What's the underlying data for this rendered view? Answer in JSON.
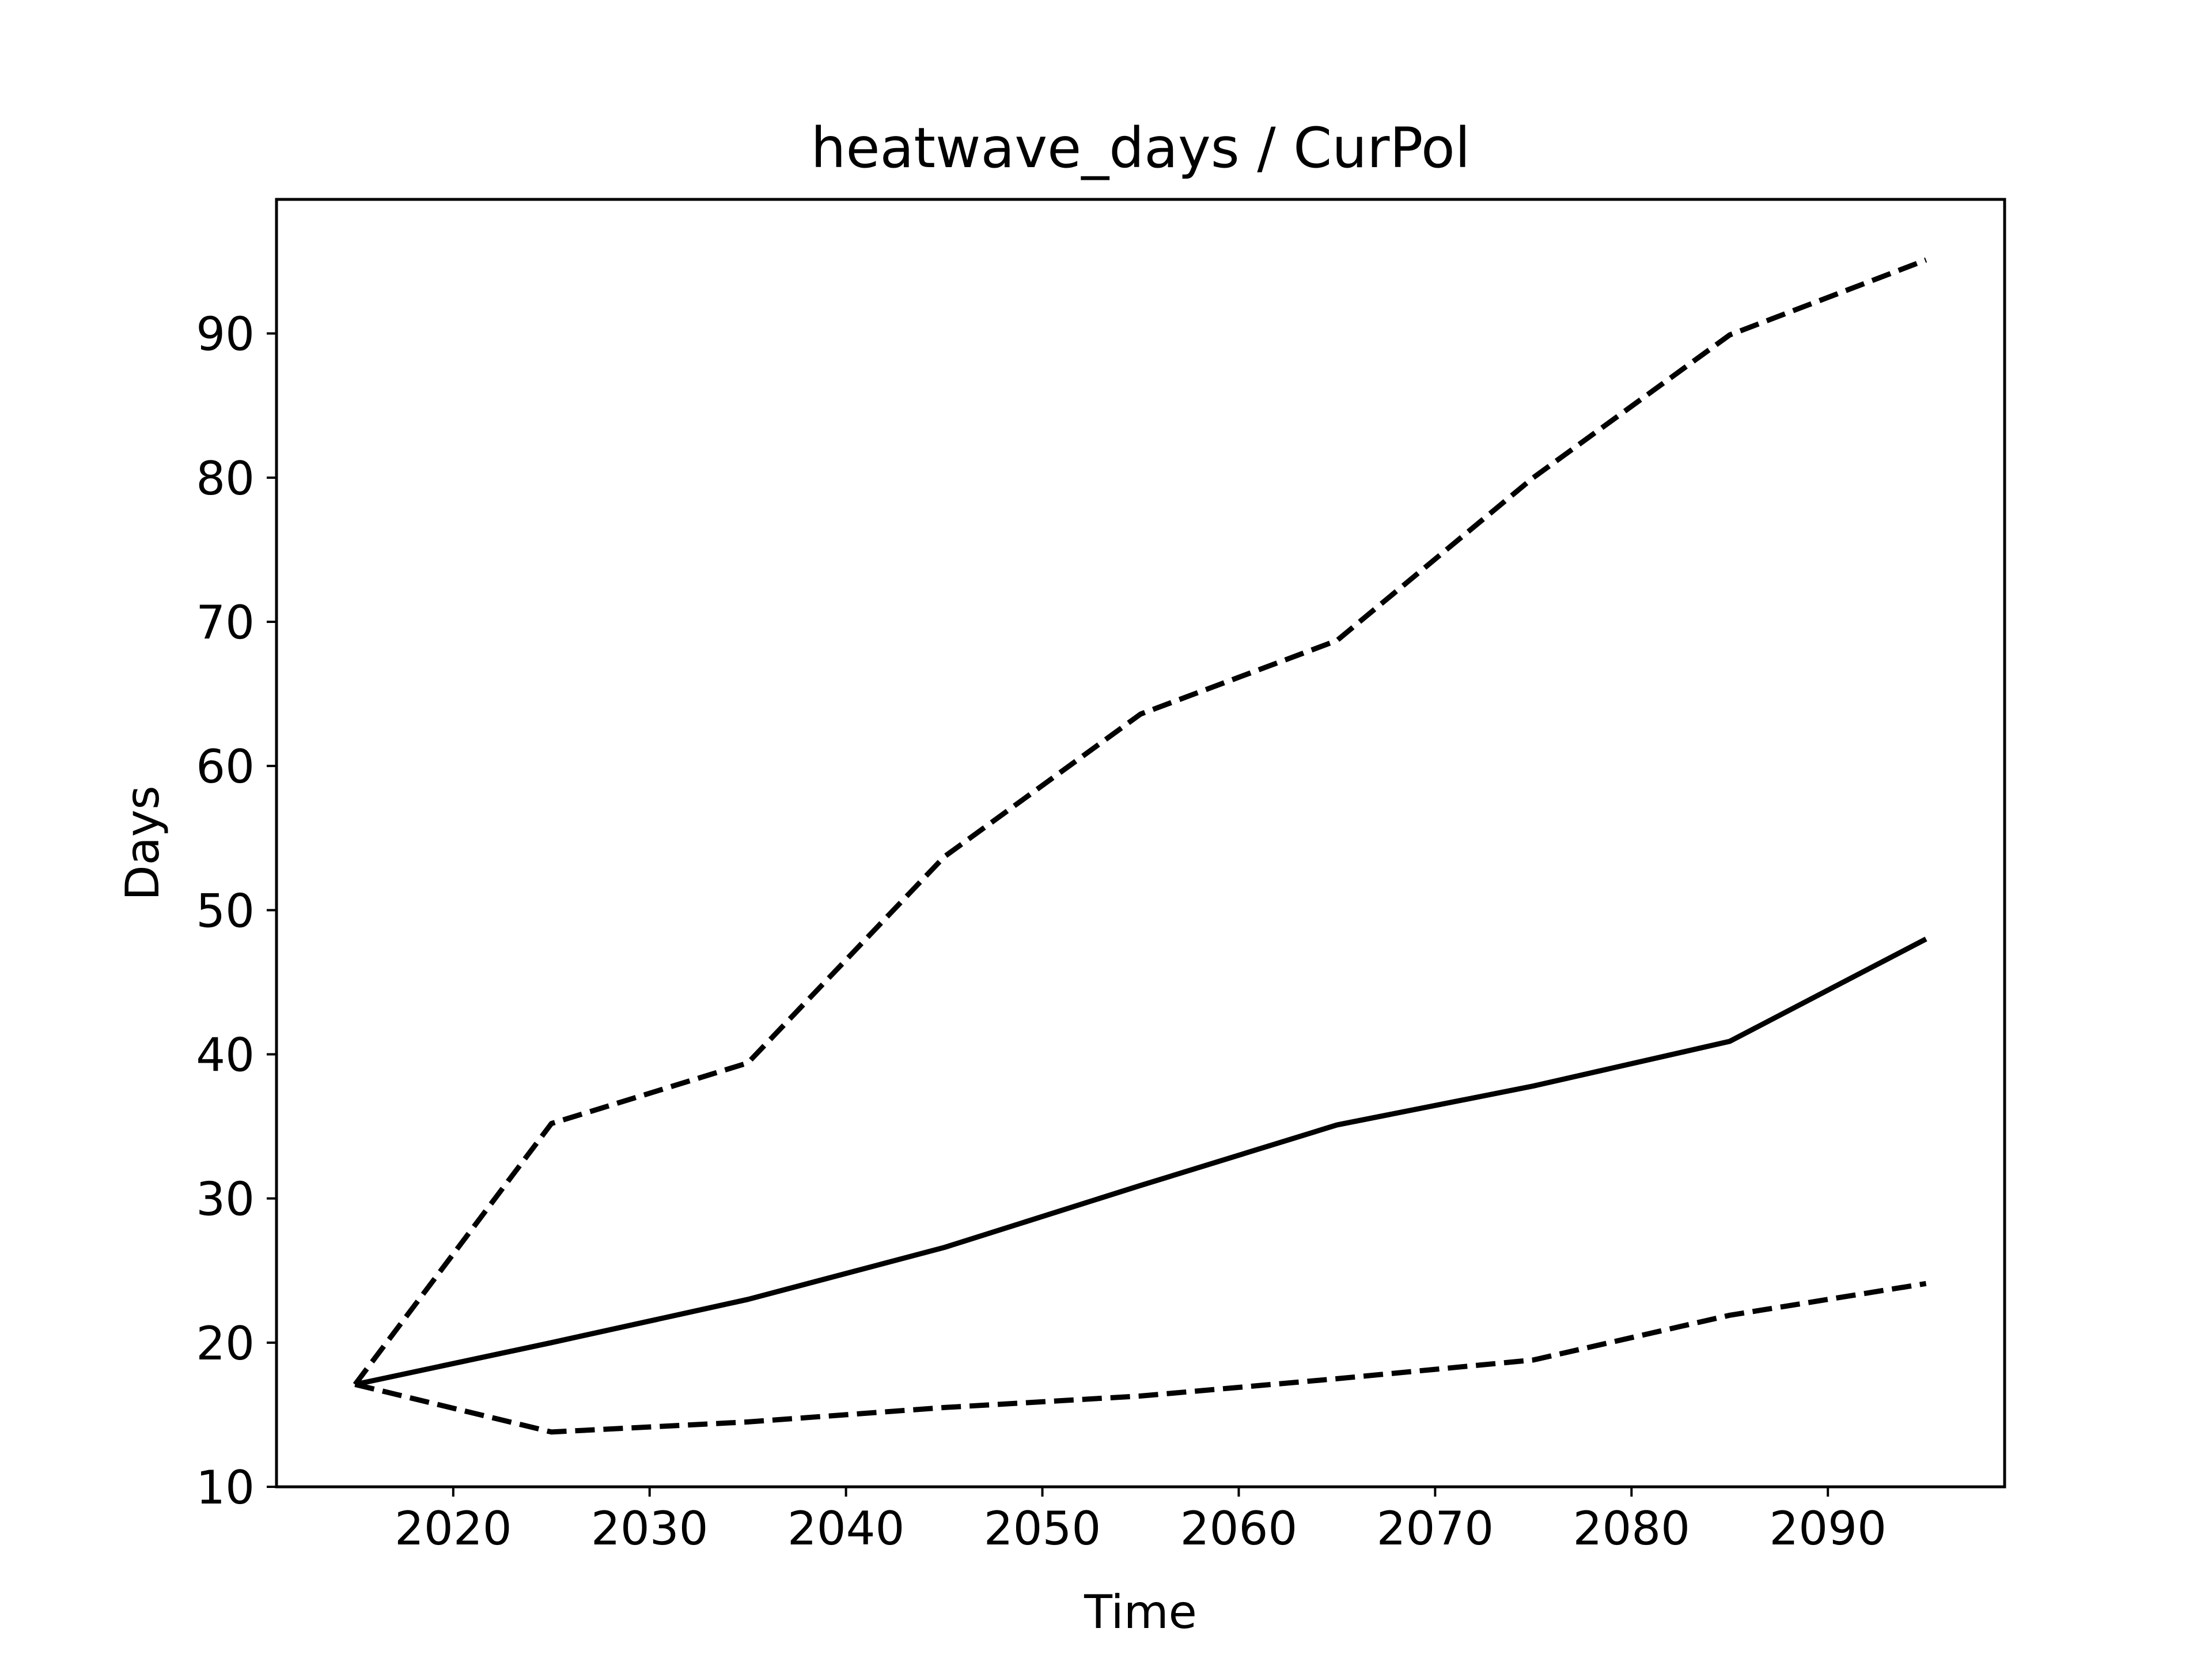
{
  "chart_data": {
    "type": "line",
    "title": "heatwave_days / CurPol",
    "xlabel": "Time",
    "ylabel": "Days",
    "x": [
      2015,
      2025,
      2035,
      2045,
      2055,
      2065,
      2075,
      2085,
      2095
    ],
    "xlim": [
      2011,
      2099
    ],
    "ylim": [
      10,
      99.3
    ],
    "x_ticks": [
      2020,
      2030,
      2040,
      2050,
      2060,
      2070,
      2080,
      2090
    ],
    "y_ticks": [
      10,
      20,
      30,
      40,
      50,
      60,
      70,
      80,
      90
    ],
    "grid": false,
    "legend": "none",
    "series": [
      {
        "style": "solid",
        "color": "#000000",
        "values": [
          17.1,
          20.0,
          23.0,
          26.6,
          30.9,
          35.1,
          37.8,
          40.9,
          48.0
        ]
      },
      {
        "style": "dashed",
        "color": "#000000",
        "values": [
          17.1,
          35.2,
          39.4,
          53.7,
          63.6,
          68.7,
          80.0,
          89.9,
          95.1
        ]
      },
      {
        "style": "dashed",
        "color": "#000000",
        "values": [
          17.1,
          13.8,
          14.5,
          15.5,
          16.3,
          17.5,
          18.8,
          21.9,
          24.1
        ]
      }
    ]
  }
}
